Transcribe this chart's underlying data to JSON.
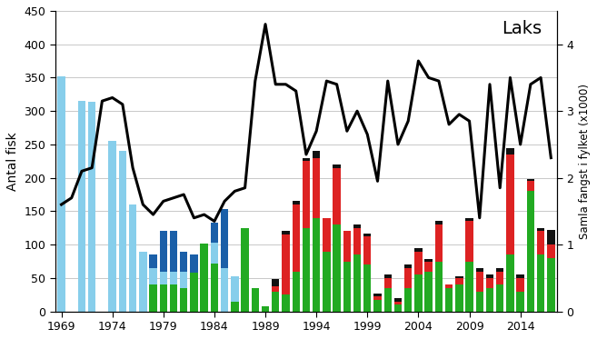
{
  "years": [
    1969,
    1970,
    1971,
    1972,
    1973,
    1974,
    1975,
    1976,
    1977,
    1978,
    1979,
    1980,
    1981,
    1982,
    1983,
    1984,
    1985,
    1986,
    1987,
    1988,
    1989,
    1990,
    1991,
    1992,
    1993,
    1994,
    1995,
    1996,
    1997,
    1998,
    1999,
    2000,
    2001,
    2002,
    2003,
    2004,
    2005,
    2006,
    2007,
    2008,
    2009,
    2010,
    2011,
    2012,
    2013,
    2014,
    2015,
    2016,
    2017
  ],
  "light_blue_bars": [
    352,
    0,
    315,
    314,
    0,
    255,
    240,
    160,
    90,
    65,
    60,
    60,
    60,
    40,
    100,
    103,
    65,
    52,
    90,
    8,
    0,
    0,
    0,
    0,
    0,
    0,
    0,
    0,
    0,
    0,
    0,
    0,
    0,
    0,
    0,
    0,
    0,
    0,
    0,
    0,
    0,
    0,
    0,
    0,
    0,
    0,
    0,
    0,
    0
  ],
  "blue_bars": [
    0,
    0,
    0,
    0,
    0,
    0,
    0,
    0,
    0,
    20,
    60,
    60,
    30,
    45,
    0,
    30,
    88,
    0,
    0,
    15,
    0,
    0,
    0,
    0,
    0,
    0,
    0,
    0,
    0,
    0,
    0,
    0,
    0,
    0,
    0,
    0,
    0,
    0,
    0,
    0,
    0,
    0,
    0,
    0,
    0,
    0,
    0,
    0,
    0
  ],
  "green_bars": [
    0,
    0,
    0,
    0,
    0,
    0,
    0,
    0,
    0,
    40,
    40,
    40,
    35,
    58,
    102,
    72,
    0,
    15,
    125,
    35,
    7,
    30,
    25,
    60,
    125,
    140,
    90,
    130,
    75,
    85,
    70,
    17,
    35,
    10,
    35,
    55,
    60,
    75,
    35,
    40,
    75,
    30,
    35,
    40,
    85,
    30,
    180,
    85,
    80
  ],
  "red_bars": [
    0,
    0,
    0,
    0,
    0,
    0,
    0,
    0,
    0,
    0,
    0,
    0,
    0,
    0,
    0,
    0,
    0,
    0,
    0,
    0,
    0,
    8,
    90,
    100,
    100,
    90,
    50,
    85,
    45,
    40,
    42,
    5,
    15,
    5,
    30,
    35,
    15,
    55,
    5,
    10,
    60,
    30,
    15,
    20,
    150,
    20,
    15,
    35,
    20
  ],
  "black_bars": [
    0,
    0,
    0,
    0,
    0,
    0,
    0,
    0,
    0,
    0,
    0,
    0,
    0,
    0,
    0,
    0,
    0,
    0,
    0,
    0,
    0,
    10,
    5,
    5,
    5,
    10,
    0,
    5,
    0,
    5,
    5,
    5,
    5,
    5,
    5,
    5,
    3,
    5,
    0,
    3,
    5,
    5,
    5,
    5,
    10,
    5,
    3,
    5,
    22
  ],
  "line_values": [
    1.6,
    1.7,
    2.1,
    2.15,
    3.15,
    3.2,
    3.1,
    2.15,
    1.6,
    1.45,
    1.65,
    1.7,
    1.75,
    1.4,
    1.45,
    1.35,
    1.65,
    1.8,
    1.85,
    3.45,
    4.3,
    3.4,
    3.4,
    3.3,
    2.35,
    2.7,
    3.45,
    3.4,
    2.7,
    3.0,
    2.65,
    1.95,
    3.45,
    2.5,
    2.85,
    3.75,
    3.5,
    3.45,
    2.8,
    2.95,
    2.85,
    1.4,
    3.4,
    1.85,
    3.5,
    2.5,
    3.4,
    3.5,
    2.3
  ],
  "ylabel_left": "Antal fisk",
  "ylabel_right": "Samla fangst i fylket (x1000)",
  "ylim_left": [
    0,
    450
  ],
  "ylim_right": [
    0,
    4.5
  ],
  "yticks_left": [
    0,
    50,
    100,
    150,
    200,
    250,
    300,
    350,
    400,
    450
  ],
  "yticks_right": [
    0,
    1,
    2,
    3,
    4
  ],
  "title": "Laks",
  "bg_color": "#ffffff",
  "bar_width": 0.75,
  "line_color": "#000000",
  "line_width": 2.2,
  "light_blue_color": "#87CEEB",
  "blue_color": "#1a5fa8",
  "green_color": "#22aa22",
  "red_color": "#dd2222",
  "black_color": "#111111",
  "grid_color": "#c8c8c8",
  "xtick_years": [
    1969,
    1974,
    1979,
    1984,
    1989,
    1994,
    1999,
    2004,
    2009,
    2014
  ]
}
